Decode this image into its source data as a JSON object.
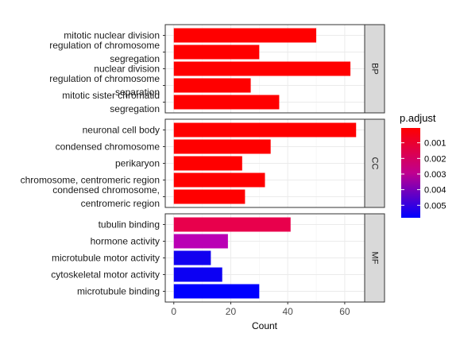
{
  "chart_data": {
    "type": "bar",
    "orientation": "horizontal",
    "xlabel": "Count",
    "ylabel": "",
    "xlim": [
      -3,
      67
    ],
    "x_ticks": [
      0,
      20,
      40,
      60
    ],
    "grid": true,
    "legend_position": "right",
    "color_scale": {
      "title": "p.adjust",
      "low_color": "#ff0000",
      "high_color": "#0000ff",
      "domain": [
        5e-05,
        0.0058
      ],
      "ticks": [
        0.001,
        0.002,
        0.003,
        0.004,
        0.005
      ],
      "tick_labels": [
        "0.001",
        "0.002",
        "0.003",
        "0.004",
        "0.005"
      ]
    },
    "facets": [
      {
        "name": "BP",
        "bars": [
          {
            "label": [
              "mitotic nuclear division"
            ],
            "count": 50,
            "color": "#ff0000"
          },
          {
            "label": [
              "regulation of chromosome",
              "segregation"
            ],
            "count": 30,
            "color": "#ff0000"
          },
          {
            "label": [
              "nuclear division"
            ],
            "count": 62,
            "color": "#ff0000"
          },
          {
            "label": [
              "regulation of chromosome",
              "separation"
            ],
            "count": 27,
            "color": "#ff0000"
          },
          {
            "label": [
              "mitotic sister chromatid",
              "segregation"
            ],
            "count": 37,
            "color": "#ff0000"
          }
        ]
      },
      {
        "name": "CC",
        "bars": [
          {
            "label": [
              "neuronal cell body"
            ],
            "count": 64,
            "color": "#ff0000"
          },
          {
            "label": [
              "condensed chromosome"
            ],
            "count": 34,
            "color": "#ff0000"
          },
          {
            "label": [
              "perikaryon"
            ],
            "count": 24,
            "color": "#ff0000"
          },
          {
            "label": [
              "chromosome, centromeric region"
            ],
            "count": 32,
            "color": "#ff0000"
          },
          {
            "label": [
              "condensed chromosome,",
              "centromeric region"
            ],
            "count": 25,
            "color": "#ff0000"
          }
        ]
      },
      {
        "name": "MF",
        "bars": [
          {
            "label": [
              "tubulin binding"
            ],
            "count": 41,
            "color": "#e8004c"
          },
          {
            "label": [
              "hormone activity"
            ],
            "count": 19,
            "color": "#ba00b4"
          },
          {
            "label": [
              "microtubule motor activity"
            ],
            "count": 13,
            "color": "#1200f0"
          },
          {
            "label": [
              "cytoskeletal motor activity"
            ],
            "count": 17,
            "color": "#0c00f3"
          },
          {
            "label": [
              "microtubule binding"
            ],
            "count": 30,
            "color": "#0000ff"
          }
        ]
      }
    ]
  }
}
